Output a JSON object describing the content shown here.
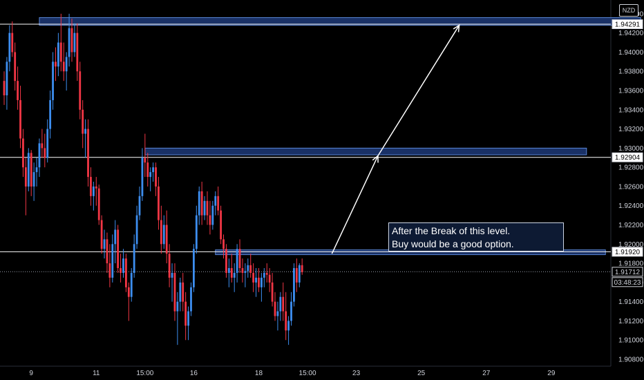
{
  "chart_data": {
    "type": "candlestick",
    "currency": "NZD",
    "ylim": [
      1.908,
      1.945
    ],
    "y_ticks": [
      "1.94400",
      "1.94200",
      "1.94000",
      "1.93800",
      "1.93600",
      "1.93400",
      "1.93200",
      "1.93000",
      "1.92800",
      "1.92600",
      "1.92400",
      "1.92200",
      "1.92000",
      "1.91800",
      "1.91600",
      "1.91400",
      "1.91200",
      "1.91000",
      "1.90800"
    ],
    "y_tick_values": [
      1.944,
      1.942,
      1.94,
      1.938,
      1.936,
      1.934,
      1.932,
      1.93,
      1.928,
      1.926,
      1.924,
      1.922,
      1.92,
      1.918,
      1.916,
      1.914,
      1.912,
      1.91,
      1.908
    ],
    "x_ticks": [
      {
        "label": "9",
        "index": 10
      },
      {
        "label": "11",
        "index": 34
      },
      {
        "label": "15:00",
        "index": 52
      },
      {
        "label": "16",
        "index": 70
      },
      {
        "label": "18",
        "index": 94
      },
      {
        "label": "15:00",
        "index": 112
      },
      {
        "label": "23",
        "index": 130
      },
      {
        "label": "25",
        "index": 154
      },
      {
        "label": "27",
        "index": 178
      },
      {
        "label": "29",
        "index": 202
      }
    ],
    "candles": [
      [
        1.937,
        1.938,
        1.9345,
        1.9355
      ],
      [
        1.9355,
        1.9395,
        1.934,
        1.939
      ],
      [
        1.939,
        1.9428,
        1.938,
        1.942
      ],
      [
        1.942,
        1.9432,
        1.9395,
        1.94
      ],
      [
        1.94,
        1.941,
        1.936,
        1.937
      ],
      [
        1.937,
        1.9385,
        1.934,
        1.935
      ],
      [
        1.935,
        1.9365,
        1.93,
        1.931
      ],
      [
        1.931,
        1.932,
        1.927,
        1.928
      ],
      [
        1.928,
        1.929,
        1.923,
        1.926
      ],
      [
        1.926,
        1.93,
        1.9255,
        1.9295
      ],
      [
        1.9295,
        1.9298,
        1.925,
        1.926
      ],
      [
        1.926,
        1.9285,
        1.9245,
        1.9275
      ],
      [
        1.9275,
        1.929,
        1.926,
        1.928
      ],
      [
        1.928,
        1.931,
        1.927,
        1.9305
      ],
      [
        1.9305,
        1.932,
        1.929,
        1.93
      ],
      [
        1.93,
        1.9315,
        1.928,
        1.929
      ],
      [
        1.929,
        1.933,
        1.9285,
        1.932
      ],
      [
        1.932,
        1.936,
        1.931,
        1.935
      ],
      [
        1.935,
        1.94,
        1.934,
        1.939
      ],
      [
        1.939,
        1.9405,
        1.937,
        1.9385
      ],
      [
        1.9385,
        1.942,
        1.9375,
        1.941
      ],
      [
        1.941,
        1.944,
        1.938,
        1.939
      ],
      [
        1.939,
        1.941,
        1.937,
        1.938
      ],
      [
        1.938,
        1.94,
        1.936,
        1.9395
      ],
      [
        1.9395,
        1.944,
        1.9385,
        1.9425
      ],
      [
        1.9425,
        1.9435,
        1.939,
        1.94
      ],
      [
        1.94,
        1.943,
        1.9395,
        1.942
      ],
      [
        1.942,
        1.943,
        1.937,
        1.938
      ],
      [
        1.938,
        1.939,
        1.933,
        1.934
      ],
      [
        1.934,
        1.935,
        1.93,
        1.9315
      ],
      [
        1.9315,
        1.933,
        1.929,
        1.932
      ],
      [
        1.932,
        1.933,
        1.926,
        1.927
      ],
      [
        1.927,
        1.928,
        1.924,
        1.925
      ],
      [
        1.925,
        1.9265,
        1.9235,
        1.926
      ],
      [
        1.926,
        1.927,
        1.924,
        1.9258
      ],
      [
        1.9258,
        1.9262,
        1.922,
        1.9225
      ],
      [
        1.9225,
        1.923,
        1.919,
        1.9195
      ],
      [
        1.9195,
        1.9215,
        1.9185,
        1.9205
      ],
      [
        1.9205,
        1.9212,
        1.917,
        1.918
      ],
      [
        1.918,
        1.92,
        1.9155,
        1.9165
      ],
      [
        1.9165,
        1.921,
        1.916,
        1.92
      ],
      [
        1.92,
        1.9225,
        1.918,
        1.9215
      ],
      [
        1.9215,
        1.922,
        1.917,
        1.9175
      ],
      [
        1.9175,
        1.919,
        1.916,
        1.917
      ],
      [
        1.917,
        1.9195,
        1.9165,
        1.9185
      ],
      [
        1.9185,
        1.919,
        1.915,
        1.9155
      ],
      [
        1.9155,
        1.916,
        1.912,
        1.9145
      ],
      [
        1.9145,
        1.9175,
        1.914,
        1.917
      ],
      [
        1.917,
        1.921,
        1.9165,
        1.92
      ],
      [
        1.92,
        1.924,
        1.9195,
        1.923
      ],
      [
        1.923,
        1.926,
        1.9225,
        1.925
      ],
      [
        1.925,
        1.93,
        1.9245,
        1.929
      ],
      [
        1.929,
        1.9315,
        1.927,
        1.9285
      ],
      [
        1.9285,
        1.9295,
        1.926,
        1.927
      ],
      [
        1.927,
        1.928,
        1.9255,
        1.9275
      ],
      [
        1.9275,
        1.9285,
        1.9265,
        1.928
      ],
      [
        1.928,
        1.9285,
        1.925,
        1.926
      ],
      [
        1.926,
        1.927,
        1.9215,
        1.9225
      ],
      [
        1.9225,
        1.924,
        1.919,
        1.92
      ],
      [
        1.92,
        1.923,
        1.9195,
        1.922
      ],
      [
        1.922,
        1.9235,
        1.918,
        1.919
      ],
      [
        1.919,
        1.92,
        1.9155,
        1.9165
      ],
      [
        1.9165,
        1.918,
        1.914,
        1.917
      ],
      [
        1.917,
        1.918,
        1.912,
        1.913
      ],
      [
        1.913,
        1.915,
        1.9095,
        1.914
      ],
      [
        1.914,
        1.9165,
        1.913,
        1.916
      ],
      [
        1.916,
        1.917,
        1.913,
        1.914
      ],
      [
        1.914,
        1.915,
        1.91,
        1.9115
      ],
      [
        1.9115,
        1.9135,
        1.91,
        1.913
      ],
      [
        1.913,
        1.916,
        1.9125,
        1.9155
      ],
      [
        1.9155,
        1.92,
        1.915,
        1.9195
      ],
      [
        1.9195,
        1.924,
        1.919,
        1.923
      ],
      [
        1.923,
        1.926,
        1.922,
        1.9255
      ],
      [
        1.9255,
        1.9265,
        1.922,
        1.923
      ],
      [
        1.923,
        1.925,
        1.9225,
        1.9245
      ],
      [
        1.9245,
        1.9255,
        1.922,
        1.923
      ],
      [
        1.923,
        1.9245,
        1.921,
        1.922
      ],
      [
        1.922,
        1.9245,
        1.9215,
        1.924
      ],
      [
        1.924,
        1.9255,
        1.923,
        1.925
      ],
      [
        1.925,
        1.926,
        1.923,
        1.9235
      ],
      [
        1.9235,
        1.924,
        1.92,
        1.9205
      ],
      [
        1.9205,
        1.921,
        1.9185,
        1.9195
      ],
      [
        1.9195,
        1.92,
        1.9165,
        1.917
      ],
      [
        1.917,
        1.9185,
        1.9155,
        1.9175
      ],
      [
        1.9175,
        1.919,
        1.916,
        1.9165
      ],
      [
        1.9165,
        1.918,
        1.915,
        1.917
      ],
      [
        1.917,
        1.92,
        1.916,
        1.9195
      ],
      [
        1.9195,
        1.9205,
        1.917,
        1.9175
      ],
      [
        1.9175,
        1.9185,
        1.916,
        1.917
      ],
      [
        1.917,
        1.918,
        1.9155,
        1.9172
      ],
      [
        1.9172,
        1.9185,
        1.9165,
        1.9178
      ],
      [
        1.9178,
        1.919,
        1.9165,
        1.917
      ],
      [
        1.917,
        1.918,
        1.915,
        1.916
      ],
      [
        1.916,
        1.9175,
        1.9145,
        1.9165
      ],
      [
        1.9165,
        1.9175,
        1.915,
        1.9155
      ],
      [
        1.9155,
        1.917,
        1.914,
        1.9165
      ],
      [
        1.9165,
        1.9175,
        1.9155,
        1.917
      ],
      [
        1.917,
        1.918,
        1.916,
        1.9168
      ],
      [
        1.9168,
        1.9175,
        1.915,
        1.916
      ],
      [
        1.916,
        1.917,
        1.9135,
        1.914
      ],
      [
        1.914,
        1.915,
        1.912,
        1.9125
      ],
      [
        1.9125,
        1.914,
        1.911,
        1.913
      ],
      [
        1.913,
        1.915,
        1.912,
        1.9145
      ],
      [
        1.9145,
        1.916,
        1.912,
        1.913
      ],
      [
        1.913,
        1.915,
        1.91,
        1.911
      ],
      [
        1.911,
        1.9125,
        1.9095,
        1.912
      ],
      [
        1.912,
        1.915,
        1.9115,
        1.914
      ],
      [
        1.914,
        1.918,
        1.9135,
        1.9175
      ],
      [
        1.9175,
        1.9185,
        1.915,
        1.916
      ],
      [
        1.916,
        1.918,
        1.9155,
        1.9178
      ],
      [
        1.9178,
        1.9185,
        1.9168,
        1.9171
      ]
    ],
    "levels": [
      {
        "value": 1.94291,
        "label": "1.94291"
      },
      {
        "value": 1.92904,
        "label": "1.92904"
      },
      {
        "value": 1.9192,
        "label": "1.91920"
      }
    ],
    "current": {
      "value": 1.91712,
      "label": "1.91712",
      "countdown": "03:48:23"
    },
    "zones": [
      {
        "y_top": 1.9436,
        "y_bottom": 1.9428,
        "i_start": 13,
        "i_end": 235
      },
      {
        "y_top": 1.93,
        "y_bottom": 1.9293,
        "i_start": 52,
        "i_end": 215
      },
      {
        "y_top": 1.9194,
        "y_bottom": 1.9189,
        "i_start": 78,
        "i_end": 222
      }
    ],
    "arrows": [
      {
        "from": [
          121,
          1.919
        ],
        "to": [
          138,
          1.9292
        ]
      },
      {
        "from": [
          138,
          1.9292
        ],
        "to": [
          168,
          1.9428
        ]
      }
    ],
    "colors": {
      "up": "#3d8ef0",
      "down": "#f23645",
      "zone_fill": "#1e3a78",
      "zone_edge": "#5a86d6",
      "level_line": "#ffffff"
    }
  },
  "annotation": {
    "line1": "After the Break of this level.",
    "line2": "Buy would be a good option."
  }
}
